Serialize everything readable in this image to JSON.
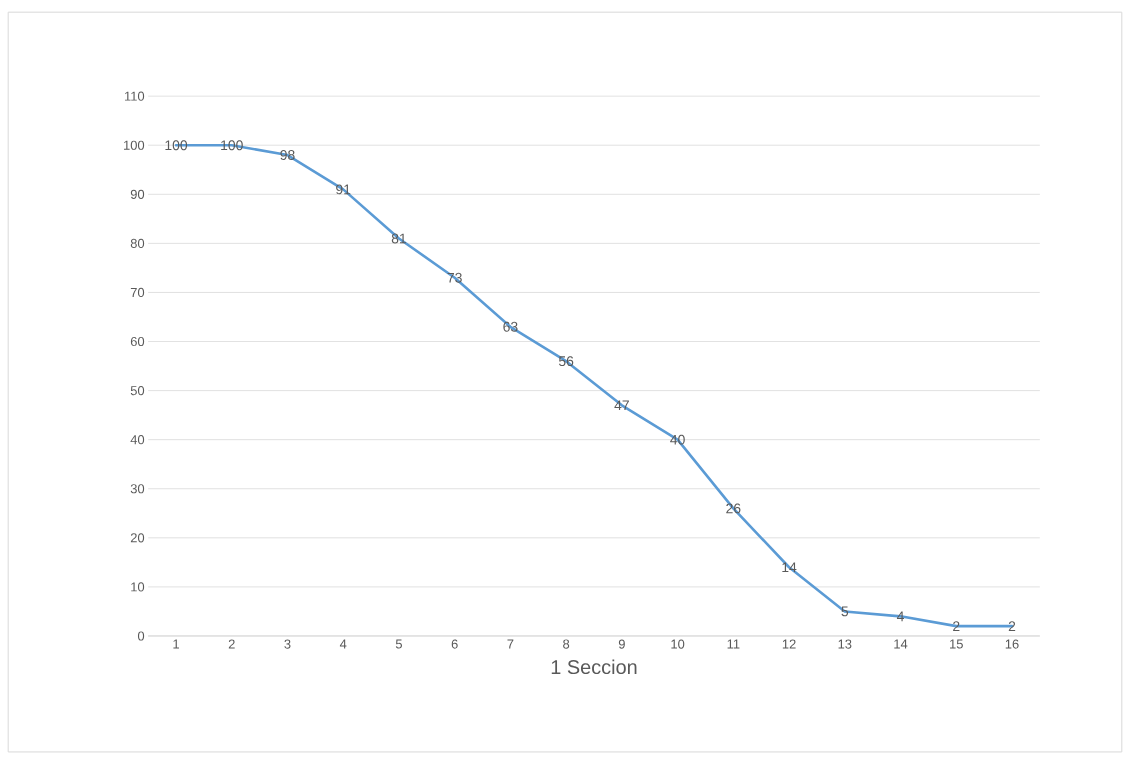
{
  "chart_data": {
    "type": "line",
    "xlabel": "1 Seccion",
    "categories": [
      "1",
      "2",
      "3",
      "4",
      "5",
      "6",
      "7",
      "8",
      "9",
      "10",
      "11",
      "12",
      "13",
      "14",
      "15",
      "16"
    ],
    "values": [
      100,
      100,
      98,
      91,
      81,
      73,
      63,
      56,
      47,
      40,
      26,
      14,
      5,
      4,
      2,
      2
    ],
    "color": "#5b9bd5",
    "ylim": [
      0,
      110
    ],
    "yticks": [
      0,
      10,
      20,
      30,
      40,
      50,
      60,
      70,
      80,
      90,
      100,
      110
    ],
    "grid": "y",
    "data_labels": true,
    "marker": "none",
    "line_style": "solid"
  }
}
